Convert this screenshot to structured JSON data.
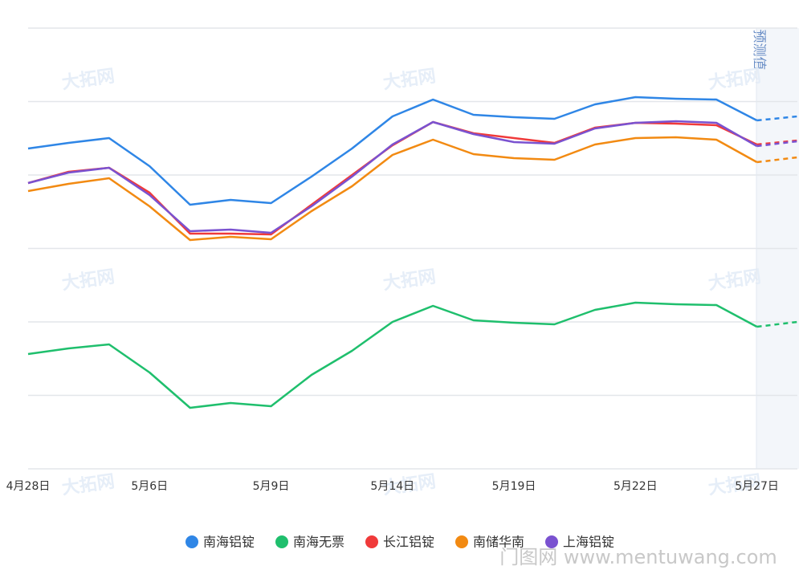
{
  "chart_data": {
    "type": "line",
    "categories": [
      "4月28日",
      null,
      null,
      "5月6日",
      null,
      null,
      "5月9日",
      null,
      null,
      "5月14日",
      null,
      null,
      "5月19日",
      null,
      null,
      "5月22日",
      null,
      null,
      "5月27日",
      null
    ],
    "series": [
      {
        "name": "南海铝锭",
        "color": "#2f86e6",
        "values": [
          399,
          406,
          412,
          377,
          329,
          335,
          331,
          364,
          399,
          439,
          460,
          441,
          438,
          436,
          454,
          463,
          461,
          460,
          434,
          439
        ]
      },
      {
        "name": "南海无票",
        "color": "#1fbf6d",
        "values": [
          143,
          150,
          155,
          120,
          76,
          82,
          78,
          117,
          147,
          183,
          203,
          185,
          182,
          180,
          198,
          207,
          205,
          204,
          177,
          183
        ]
      },
      {
        "name": "长江铝锭",
        "color": "#f03a3a",
        "values": [
          356,
          370,
          375,
          344,
          293,
          293,
          292,
          329,
          366,
          403,
          432,
          418,
          412,
          406,
          425,
          431,
          430,
          428,
          404,
          409
        ]
      },
      {
        "name": "南储华南",
        "color": "#f28a12",
        "values": [
          346,
          355,
          362,
          327,
          285,
          289,
          286,
          321,
          352,
          391,
          410,
          392,
          387,
          385,
          404,
          412,
          413,
          410,
          382,
          388
        ]
      },
      {
        "name": "上海铝锭",
        "color": "#7a52d0",
        "values": [
          356,
          369,
          375,
          341,
          296,
          298,
          294,
          327,
          364,
          404,
          432,
          417,
          407,
          405,
          424,
          431,
          433,
          431,
          402,
          408
        ]
      }
    ],
    "ylim": [
      0,
      549
    ],
    "yticks": [
      0,
      91.5,
      183,
      274.5,
      366,
      457.5,
      549
    ],
    "grid": true,
    "forecast_from_index": 18,
    "forecast_label": "预测值",
    "legend": "bottom",
    "watermark_logo": "大拓网",
    "watermark": "门图网 www.mentuwang.com"
  }
}
